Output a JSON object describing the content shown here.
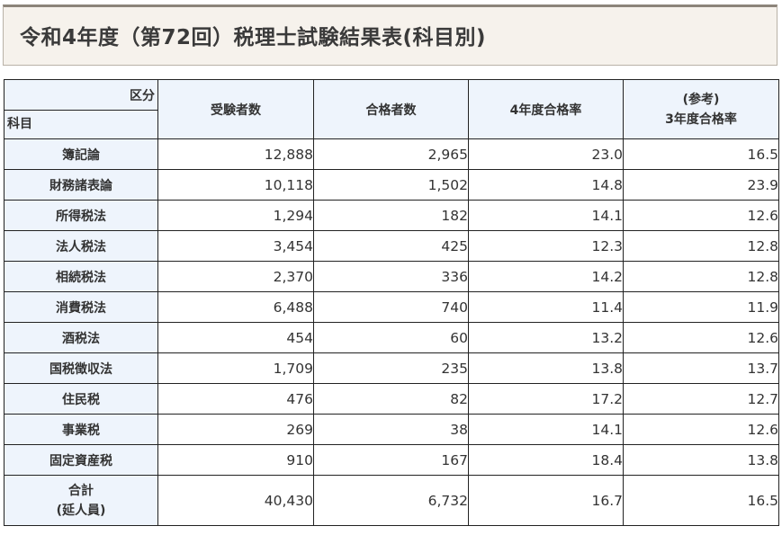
{
  "title": "令和4年度（第72回）税理士試験結果表(科目別)",
  "header": {
    "corner_top": "区分",
    "corner_bottom": "科目",
    "examinees": "受験者数",
    "passers": "合格者数",
    "rate_r4": "4年度合格率",
    "ref_label": "(参考)",
    "rate_r3": "3年度合格率"
  },
  "rows": [
    {
      "subject": "簿記論",
      "examinees": "12,888",
      "passers": "2,965",
      "rate_r4": "23.0",
      "rate_r3": "16.5"
    },
    {
      "subject": "財務諸表論",
      "examinees": "10,118",
      "passers": "1,502",
      "rate_r4": "14.8",
      "rate_r3": "23.9"
    },
    {
      "subject": "所得税法",
      "examinees": "1,294",
      "passers": "182",
      "rate_r4": "14.1",
      "rate_r3": "12.6"
    },
    {
      "subject": "法人税法",
      "examinees": "3,454",
      "passers": "425",
      "rate_r4": "12.3",
      "rate_r3": "12.8"
    },
    {
      "subject": "相続税法",
      "examinees": "2,370",
      "passers": "336",
      "rate_r4": "14.2",
      "rate_r3": "12.8"
    },
    {
      "subject": "消費税法",
      "examinees": "6,488",
      "passers": "740",
      "rate_r4": "11.4",
      "rate_r3": "11.9"
    },
    {
      "subject": "酒税法",
      "examinees": "454",
      "passers": "60",
      "rate_r4": "13.2",
      "rate_r3": "12.6"
    },
    {
      "subject": "国税徴収法",
      "examinees": "1,709",
      "passers": "235",
      "rate_r4": "13.8",
      "rate_r3": "13.7"
    },
    {
      "subject": "住民税",
      "examinees": "476",
      "passers": "82",
      "rate_r4": "17.2",
      "rate_r3": "12.7"
    },
    {
      "subject": "事業税",
      "examinees": "269",
      "passers": "38",
      "rate_r4": "14.1",
      "rate_r3": "12.6"
    },
    {
      "subject": "固定資産税",
      "examinees": "910",
      "passers": "167",
      "rate_r4": "18.4",
      "rate_r3": "13.8"
    }
  ],
  "total": {
    "label_line1": "合計",
    "label_line2": "(延人員)",
    "examinees": "40,430",
    "passers": "6,732",
    "rate_r4": "16.7",
    "rate_r3": "16.5"
  }
}
